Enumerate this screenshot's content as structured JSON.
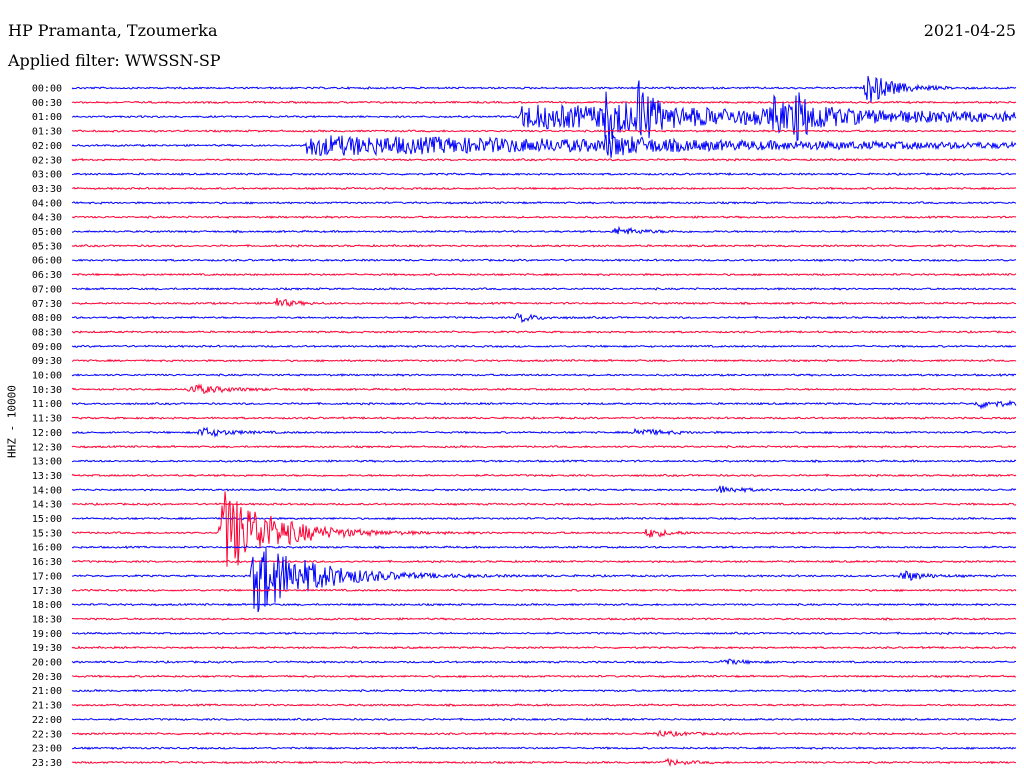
{
  "header": {
    "station": "HP Pramanta, Tzoumerka",
    "date": "2021-04-25",
    "filter": "Applied filter: WWSSN-SP",
    "channel": "HHZ - 10000"
  },
  "colors": {
    "blue": "#0000ff",
    "red": "#ff0033"
  },
  "chart_data": {
    "type": "line",
    "title": "HP Pramanta, Tzoumerka",
    "channel": "HHZ - 10000",
    "rows": [
      "00:00",
      "00:30",
      "01:00",
      "01:30",
      "02:00",
      "02:30",
      "03:00",
      "03:30",
      "04:00",
      "04:30",
      "05:00",
      "05:30",
      "06:00",
      "06:30",
      "07:00",
      "07:30",
      "08:00",
      "08:30",
      "09:00",
      "09:30",
      "10:00",
      "10:30",
      "11:00",
      "11:30",
      "12:00",
      "12:30",
      "13:00",
      "13:30",
      "14:00",
      "14:30",
      "15:00",
      "15:30",
      "16:00",
      "16:30",
      "17:00",
      "17:30",
      "18:00",
      "18:30",
      "19:00",
      "19:30",
      "20:00",
      "20:30",
      "21:00",
      "21:30",
      "22:00",
      "22:30",
      "23:00",
      "23:30"
    ],
    "x_unit": "minutes within 30-minute row",
    "x_range": [
      0,
      30
    ],
    "events": [
      {
        "row": 0,
        "minute": 25.3,
        "amplitude": 16,
        "duration": 0.8
      },
      {
        "row": 2,
        "minute": 14.3,
        "amplitude": 12,
        "duration": 15
      },
      {
        "row": 2,
        "minute": 17.0,
        "amplitude": 22,
        "duration": 0.4
      },
      {
        "row": 2,
        "minute": 18.0,
        "amplitude": 30,
        "duration": 0.4
      },
      {
        "row": 2,
        "minute": 23.0,
        "amplitude": 18,
        "duration": 0.6
      },
      {
        "row": 2,
        "minute": 22.3,
        "amplitude": 14,
        "duration": 0.6
      },
      {
        "row": 4,
        "minute": 7.5,
        "amplitude": 10,
        "duration": 15
      },
      {
        "row": 4,
        "minute": 17.0,
        "amplitude": 8,
        "duration": 1
      },
      {
        "row": 10,
        "minute": 17.3,
        "amplitude": 4,
        "duration": 0.8
      },
      {
        "row": 15,
        "minute": 6.5,
        "amplitude": 5,
        "duration": 0.5
      },
      {
        "row": 16,
        "minute": 14.2,
        "amplitude": 5,
        "duration": 0.5
      },
      {
        "row": 21,
        "minute": 3.8,
        "amplitude": 5,
        "duration": 1
      },
      {
        "row": 22,
        "minute": 28.8,
        "amplitude": 4,
        "duration": 1
      },
      {
        "row": 24,
        "minute": 4.1,
        "amplitude": 5,
        "duration": 0.8
      },
      {
        "row": 24,
        "minute": 17.9,
        "amplitude": 4,
        "duration": 0.8
      },
      {
        "row": 28,
        "minute": 20.6,
        "amplitude": 4,
        "duration": 0.6
      },
      {
        "row": 31,
        "minute": 4.8,
        "amplitude": 45,
        "duration": 1.5
      },
      {
        "row": 31,
        "minute": 18.3,
        "amplitude": 5,
        "duration": 0.6
      },
      {
        "row": 34,
        "minute": 5.8,
        "amplitude": 38,
        "duration": 1.8
      },
      {
        "row": 34,
        "minute": 26.4,
        "amplitude": 6,
        "duration": 0.6
      },
      {
        "row": 40,
        "minute": 20.7,
        "amplitude": 3,
        "duration": 0.6
      },
      {
        "row": 45,
        "minute": 18.6,
        "amplitude": 3,
        "duration": 0.8
      },
      {
        "row": 47,
        "minute": 18.9,
        "amplitude": 3,
        "duration": 0.6
      }
    ]
  }
}
